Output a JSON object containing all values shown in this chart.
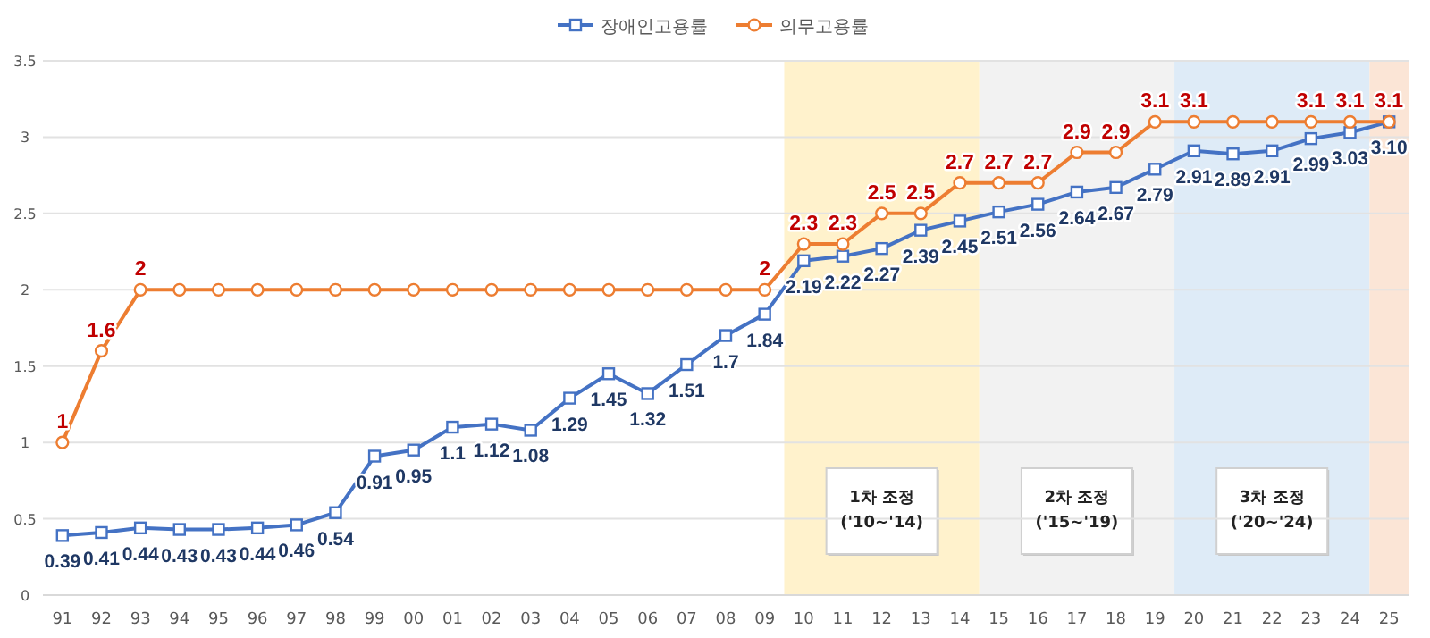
{
  "chart_data": {
    "type": "line",
    "categories": [
      "91",
      "92",
      "93",
      "94",
      "95",
      "96",
      "97",
      "98",
      "99",
      "00",
      "01",
      "02",
      "03",
      "04",
      "05",
      "06",
      "07",
      "08",
      "09",
      "10",
      "11",
      "12",
      "13",
      "14",
      "15",
      "16",
      "17",
      "18",
      "19",
      "20",
      "21",
      "22",
      "23",
      "24",
      "25"
    ],
    "series": [
      {
        "name": "장애인고용률",
        "color": "#4472c4",
        "marker": "square",
        "values": [
          0.39,
          0.41,
          0.44,
          0.43,
          0.43,
          0.44,
          0.46,
          0.54,
          0.91,
          0.95,
          1.1,
          1.12,
          1.08,
          1.29,
          1.45,
          1.32,
          1.51,
          1.7,
          1.84,
          2.19,
          2.22,
          2.27,
          2.39,
          2.45,
          2.51,
          2.56,
          2.64,
          2.67,
          2.79,
          2.91,
          2.89,
          2.91,
          2.99,
          3.03,
          3.1
        ],
        "value_labels": [
          "0.39",
          "0.41",
          "0.44",
          "0.43",
          "0.43",
          "0.44",
          "0.46",
          "0.54",
          "0.91",
          "0.95",
          "1.1",
          "1.12",
          "1.08",
          "1.29",
          "1.45",
          "1.32",
          "1.51",
          "1.7",
          "1.84",
          "2.19",
          "2.22",
          "2.27",
          "2.39",
          "2.45",
          "2.51",
          "2.56",
          "2.64",
          "2.67",
          "2.79",
          "2.91",
          "2.89",
          "2.91",
          "2.99",
          "3.03",
          "3.10"
        ]
      },
      {
        "name": "의무고용률",
        "color": "#ed7d31",
        "marker": "circle",
        "values": [
          1,
          1.6,
          2,
          2,
          2,
          2,
          2,
          2,
          2,
          2,
          2,
          2,
          2,
          2,
          2,
          2,
          2,
          2,
          2,
          2.3,
          2.3,
          2.5,
          2.5,
          2.7,
          2.7,
          2.7,
          2.9,
          2.9,
          3.1,
          3.1,
          3.1,
          3.1,
          3.1,
          3.1,
          3.1
        ],
        "value_labels": [
          "1",
          "1.6",
          "2",
          null,
          null,
          null,
          null,
          null,
          null,
          null,
          null,
          null,
          null,
          null,
          null,
          null,
          null,
          null,
          "2",
          "2.3",
          "2.3",
          "2.5",
          "2.5",
          "2.7",
          "2.7",
          "2.7",
          "2.9",
          "2.9",
          "3.1",
          "3.1",
          null,
          null,
          "3.1",
          "3.1",
          "3.1"
        ]
      }
    ],
    "ylim": [
      0,
      3.5
    ],
    "yticks": [
      0,
      0.5,
      1,
      1.5,
      2,
      2.5,
      3,
      3.5
    ],
    "grid": "y",
    "legend": "top",
    "bands": [
      {
        "axis": "x",
        "from": "10",
        "to": "14",
        "label": "1차 조정 ('10~'14)",
        "color": "#fff2cc"
      },
      {
        "axis": "x",
        "from": "15",
        "to": "19",
        "label": "2차 조정 ('15~'19)",
        "color": "#f2f2f2"
      },
      {
        "axis": "x",
        "from": "20",
        "to": "24",
        "label": "3차 조정 ('20~'24)",
        "color": "#deebf7"
      },
      {
        "axis": "x",
        "from": "25",
        "to": "25",
        "color": "#fbe5d6"
      }
    ]
  }
}
